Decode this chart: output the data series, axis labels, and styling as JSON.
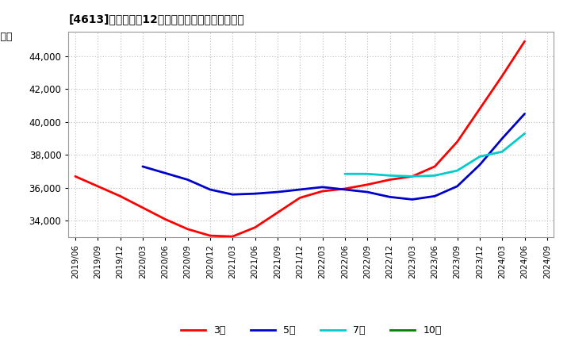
{
  "title": "[4613]　経常利益12か月移動合計の平均値の推移",
  "background_color": "#ffffff",
  "plot_bg_color": "#ffffff",
  "grid_color": "#bbbbbb",
  "ylim": [
    33000,
    45500
  ],
  "yticks": [
    34000,
    36000,
    38000,
    40000,
    42000,
    44000
  ],
  "x_labels": [
    "2019/06",
    "2019/09",
    "2019/12",
    "2020/03",
    "2020/06",
    "2020/09",
    "2020/12",
    "2021/03",
    "2021/06",
    "2021/09",
    "2021/12",
    "2022/03",
    "2022/06",
    "2022/09",
    "2022/12",
    "2023/03",
    "2023/06",
    "2023/09",
    "2023/12",
    "2024/03",
    "2024/06",
    "2024/09"
  ],
  "series": {
    "3yr": {
      "color": "#ff0000",
      "label": "3年",
      "data": [
        [
          "2019/06",
          36700
        ],
        [
          "2019/09",
          36100
        ],
        [
          "2019/12",
          35500
        ],
        [
          "2020/03",
          34800
        ],
        [
          "2020/06",
          34100
        ],
        [
          "2020/09",
          33500
        ],
        [
          "2020/12",
          33100
        ],
        [
          "2021/03",
          33050
        ],
        [
          "2021/06",
          33600
        ],
        [
          "2021/09",
          34500
        ],
        [
          "2021/12",
          35400
        ],
        [
          "2022/03",
          35800
        ],
        [
          "2022/06",
          35950
        ],
        [
          "2022/09",
          36200
        ],
        [
          "2022/12",
          36500
        ],
        [
          "2023/03",
          36700
        ],
        [
          "2023/06",
          37300
        ],
        [
          "2023/09",
          38800
        ],
        [
          "2023/12",
          40800
        ],
        [
          "2024/03",
          42800
        ],
        [
          "2024/06",
          44900
        ],
        [
          "2024/09",
          null
        ]
      ]
    },
    "5yr": {
      "color": "#0000cc",
      "label": "5年",
      "data": [
        [
          "2019/06",
          null
        ],
        [
          "2019/09",
          null
        ],
        [
          "2019/12",
          null
        ],
        [
          "2020/03",
          37300
        ],
        [
          "2020/06",
          36900
        ],
        [
          "2020/09",
          36500
        ],
        [
          "2020/12",
          35900
        ],
        [
          "2021/03",
          35600
        ],
        [
          "2021/06",
          35650
        ],
        [
          "2021/09",
          35750
        ],
        [
          "2021/12",
          35900
        ],
        [
          "2022/03",
          36050
        ],
        [
          "2022/06",
          35900
        ],
        [
          "2022/09",
          35750
        ],
        [
          "2022/12",
          35450
        ],
        [
          "2023/03",
          35300
        ],
        [
          "2023/06",
          35500
        ],
        [
          "2023/09",
          36100
        ],
        [
          "2023/12",
          37400
        ],
        [
          "2024/03",
          39000
        ],
        [
          "2024/06",
          40500
        ],
        [
          "2024/09",
          null
        ]
      ]
    },
    "7yr": {
      "color": "#00cccc",
      "label": "7年",
      "data": [
        [
          "2019/06",
          null
        ],
        [
          "2019/09",
          null
        ],
        [
          "2019/12",
          null
        ],
        [
          "2020/03",
          null
        ],
        [
          "2020/06",
          null
        ],
        [
          "2020/09",
          null
        ],
        [
          "2020/12",
          null
        ],
        [
          "2021/03",
          null
        ],
        [
          "2021/06",
          null
        ],
        [
          "2021/09",
          null
        ],
        [
          "2021/12",
          null
        ],
        [
          "2022/03",
          null
        ],
        [
          "2022/06",
          36850
        ],
        [
          "2022/09",
          36850
        ],
        [
          "2022/12",
          36750
        ],
        [
          "2023/03",
          36700
        ],
        [
          "2023/06",
          36750
        ],
        [
          "2023/09",
          37050
        ],
        [
          "2023/12",
          37900
        ],
        [
          "2024/03",
          38200
        ],
        [
          "2024/06",
          39300
        ],
        [
          "2024/09",
          null
        ]
      ]
    },
    "10yr": {
      "color": "#008000",
      "label": "10年",
      "data": [
        [
          "2019/06",
          null
        ],
        [
          "2019/09",
          null
        ],
        [
          "2019/12",
          null
        ],
        [
          "2020/03",
          null
        ],
        [
          "2020/06",
          null
        ],
        [
          "2020/09",
          null
        ],
        [
          "2020/12",
          null
        ],
        [
          "2021/03",
          null
        ],
        [
          "2021/06",
          null
        ],
        [
          "2021/09",
          null
        ],
        [
          "2021/12",
          null
        ],
        [
          "2022/03",
          null
        ],
        [
          "2022/06",
          null
        ],
        [
          "2022/09",
          null
        ],
        [
          "2022/12",
          null
        ],
        [
          "2023/03",
          null
        ],
        [
          "2023/06",
          null
        ],
        [
          "2023/09",
          null
        ],
        [
          "2023/12",
          null
        ],
        [
          "2024/03",
          null
        ],
        [
          "2024/06",
          null
        ],
        [
          "2024/09",
          null
        ]
      ]
    }
  }
}
